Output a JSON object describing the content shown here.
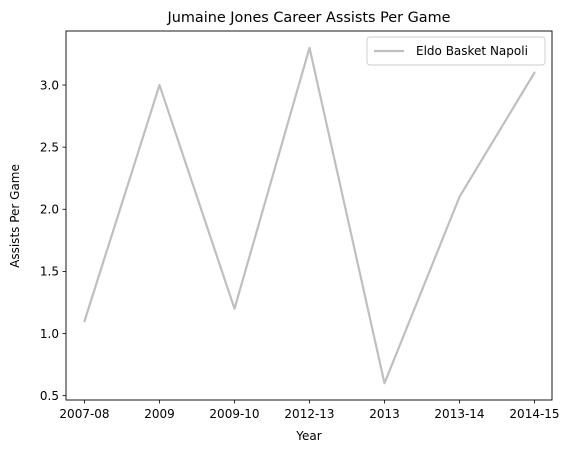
{
  "chart_data": {
    "type": "line",
    "title": "Jumaine Jones Career Assists Per Game",
    "xlabel": "Year",
    "ylabel": "Assists Per Game",
    "categories": [
      "2007-08",
      "2009",
      "2009-10",
      "2012-13",
      "2013",
      "2013-14",
      "2014-15"
    ],
    "series": [
      {
        "name": "Eldo Basket Napoli",
        "values": [
          1.1,
          3.0,
          1.2,
          3.3,
          0.6,
          2.1,
          3.1
        ],
        "color": "#bfbfbf"
      }
    ],
    "yticks": [
      "0.5",
      "1.0",
      "1.5",
      "2.0",
      "2.5",
      "3.0"
    ],
    "ylim": [
      0.465,
      3.435
    ],
    "grid": false,
    "legend_position": "top-right"
  }
}
